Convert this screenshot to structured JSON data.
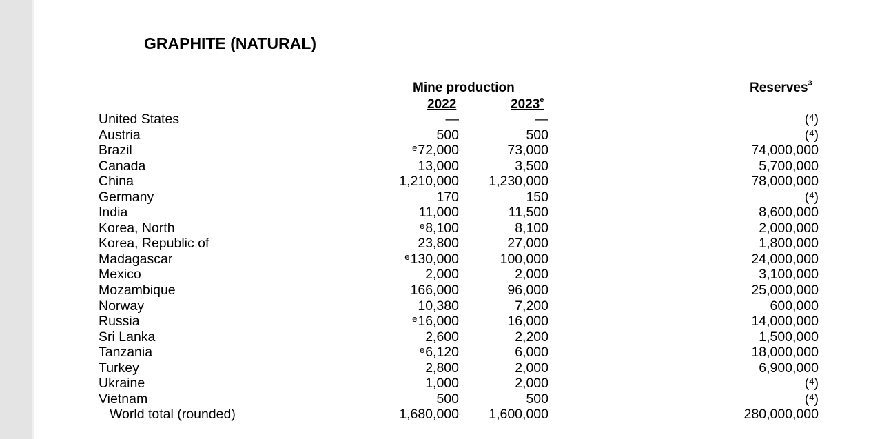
{
  "document": {
    "title": "GRAPHITE (NATURAL)",
    "headers": {
      "mine_production": "Mine production",
      "year_2022": "2022",
      "year_2023": "2023",
      "year_2023_sup": "e",
      "reserves": "Reserves",
      "reserves_sup": "3"
    },
    "rows": [
      {
        "country": "United States",
        "y2022": "—",
        "y2022_e": "",
        "y2023": "—",
        "reserves": "(",
        "reserves_fn": "4",
        "reserves_close": ")"
      },
      {
        "country": "Austria",
        "y2022": "500",
        "y2022_e": "",
        "y2023": "500",
        "reserves": "(",
        "reserves_fn": "4",
        "reserves_close": ")"
      },
      {
        "country": "Brazil",
        "y2022": "72,000",
        "y2022_e": "e",
        "y2023": "73,000",
        "reserves": "74,000,000",
        "reserves_fn": "",
        "reserves_close": ""
      },
      {
        "country": "Canada",
        "y2022": "13,000",
        "y2022_e": "",
        "y2023": "3,500",
        "reserves": "5,700,000",
        "reserves_fn": "",
        "reserves_close": ""
      },
      {
        "country": "China",
        "y2022": "1,210,000",
        "y2022_e": "",
        "y2023": "1,230,000",
        "reserves": "78,000,000",
        "reserves_fn": "",
        "reserves_close": ""
      },
      {
        "country": "Germany",
        "y2022": "170",
        "y2022_e": "",
        "y2023": "150",
        "reserves": "(",
        "reserves_fn": "4",
        "reserves_close": ")"
      },
      {
        "country": "India",
        "y2022": "11,000",
        "y2022_e": "",
        "y2023": "11,500",
        "reserves": "8,600,000",
        "reserves_fn": "",
        "reserves_close": ""
      },
      {
        "country": "Korea, North",
        "y2022": "8,100",
        "y2022_e": "e",
        "y2023": "8,100",
        "reserves": "2,000,000",
        "reserves_fn": "",
        "reserves_close": ""
      },
      {
        "country": "Korea, Republic of",
        "y2022": "23,800",
        "y2022_e": "",
        "y2023": "27,000",
        "reserves": "1,800,000",
        "reserves_fn": "",
        "reserves_close": ""
      },
      {
        "country": "Madagascar",
        "y2022": "130,000",
        "y2022_e": "e",
        "y2023": "100,000",
        "reserves": "24,000,000",
        "reserves_fn": "",
        "reserves_close": ""
      },
      {
        "country": "Mexico",
        "y2022": "2,000",
        "y2022_e": "",
        "y2023": "2,000",
        "reserves": "3,100,000",
        "reserves_fn": "",
        "reserves_close": ""
      },
      {
        "country": "Mozambique",
        "y2022": "166,000",
        "y2022_e": "",
        "y2023": "96,000",
        "reserves": "25,000,000",
        "reserves_fn": "",
        "reserves_close": ""
      },
      {
        "country": "Norway",
        "y2022": "10,380",
        "y2022_e": "",
        "y2023": "7,200",
        "reserves": "600,000",
        "reserves_fn": "",
        "reserves_close": ""
      },
      {
        "country": "Russia",
        "y2022": "16,000",
        "y2022_e": "e",
        "y2023": "16,000",
        "reserves": "14,000,000",
        "reserves_fn": "",
        "reserves_close": ""
      },
      {
        "country": "Sri Lanka",
        "y2022": "2,600",
        "y2022_e": "",
        "y2023": "2,200",
        "reserves": "1,500,000",
        "reserves_fn": "",
        "reserves_close": ""
      },
      {
        "country": "Tanzania",
        "y2022": "6,120",
        "y2022_e": "e",
        "y2023": "6,000",
        "reserves": "18,000,000",
        "reserves_fn": "",
        "reserves_close": ""
      },
      {
        "country": "Turkey",
        "y2022": "2,800",
        "y2022_e": "",
        "y2023": "2,000",
        "reserves": "6,900,000",
        "reserves_fn": "",
        "reserves_close": ""
      },
      {
        "country": "Ukraine",
        "y2022": "1,000",
        "y2022_e": "",
        "y2023": "2,000",
        "reserves": "(",
        "reserves_fn": "4",
        "reserves_close": ")"
      },
      {
        "country": "Vietnam",
        "y2022": "500",
        "y2022_e": "",
        "y2023": "500",
        "reserves": "(",
        "reserves_fn": "4",
        "reserves_close": ")"
      }
    ],
    "total": {
      "label": "World total (rounded)",
      "y2022": "1,680,000",
      "y2023": "1,600,000",
      "reserves": "280,000,000"
    }
  }
}
